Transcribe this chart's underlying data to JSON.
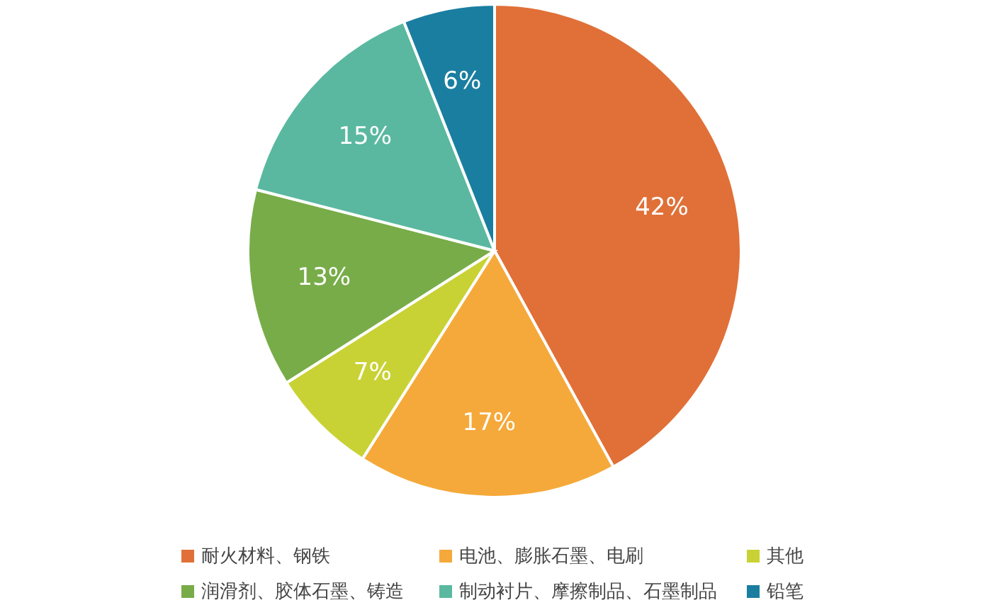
{
  "chart_data": {
    "type": "pie",
    "categories": [
      "耐火材料、钢铁",
      "电池、膨胀石墨、电刷",
      "其他",
      "润滑剂、胶体石墨、铸造",
      "制动衬片、摩擦制品、石墨制品",
      "铅笔"
    ],
    "values": [
      42,
      17,
      7,
      13,
      15,
      6
    ],
    "value_labels": [
      "42%",
      "17%",
      "7%",
      "13%",
      "15%",
      "6%"
    ],
    "colors": [
      "#e07038",
      "#f5a93a",
      "#c8d234",
      "#78ac48",
      "#5ab8a0",
      "#1a7ea0"
    ],
    "legend": "bottom"
  }
}
